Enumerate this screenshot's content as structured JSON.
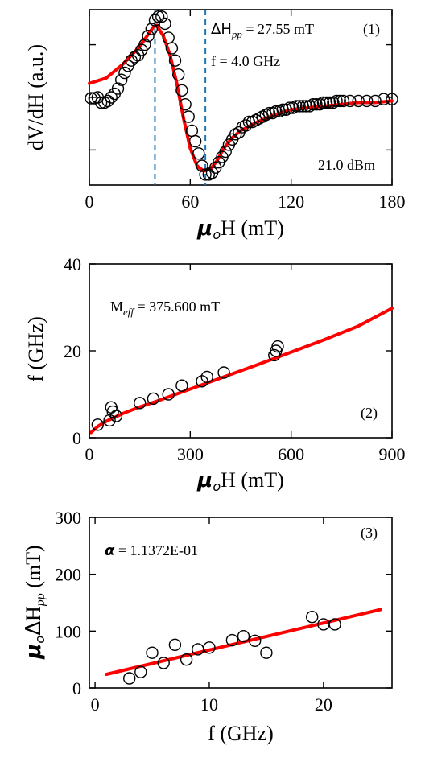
{
  "colors": {
    "fit": "#ff0000",
    "marker": "#000000",
    "guide": "#1f77b4"
  },
  "chart_data": [
    {
      "type": "scatter",
      "panel": "(1)",
      "xlabel": "μoH (mT)",
      "ylabel": "dV/dH (a.u.)",
      "xlim": [
        0,
        180
      ],
      "ylim": [
        0,
        1
      ],
      "xticks": [
        0,
        60,
        120,
        180
      ],
      "yticks": [
        0.2,
        0.5,
        0.8
      ],
      "ytick_labels_visible": false,
      "annotations": {
        "dhpp_symbol": "ΔH",
        "dhpp_sub": "pp",
        "dhpp_value": " = 27.55 mT",
        "freq": "f  =  4.0 GHz",
        "power": "21.0 dBm"
      },
      "vlines": [
        39,
        69
      ],
      "series": [
        {
          "style": "open-circle",
          "x": [
            1,
            3,
            5,
            7,
            9,
            11,
            13,
            15,
            17,
            19,
            21,
            23,
            25,
            27,
            29,
            31,
            33,
            35,
            37,
            39,
            41,
            43,
            45,
            47,
            49,
            51,
            53,
            55,
            57,
            59,
            61,
            63,
            65,
            67,
            69,
            71,
            73,
            75,
            77,
            79,
            81,
            83,
            85,
            87,
            89,
            91,
            93,
            95,
            97,
            99,
            101,
            103,
            105,
            107,
            109,
            111,
            113,
            115,
            117,
            119,
            121,
            123,
            125,
            127,
            129,
            131,
            133,
            135,
            137,
            139,
            141,
            143,
            145,
            147,
            149,
            151,
            155,
            160,
            165,
            170,
            175,
            180
          ],
          "y": [
            0.495,
            0.495,
            0.5,
            0.47,
            0.47,
            0.48,
            0.5,
            0.52,
            0.55,
            0.6,
            0.64,
            0.68,
            0.71,
            0.73,
            0.74,
            0.77,
            0.8,
            0.85,
            0.89,
            0.94,
            0.96,
            0.96,
            0.92,
            0.84,
            0.78,
            0.71,
            0.63,
            0.54,
            0.46,
            0.39,
            0.31,
            0.25,
            0.18,
            0.11,
            0.06,
            0.06,
            0.07,
            0.1,
            0.13,
            0.16,
            0.19,
            0.23,
            0.26,
            0.29,
            0.3,
            0.33,
            0.34,
            0.36,
            0.36,
            0.37,
            0.38,
            0.39,
            0.4,
            0.41,
            0.41,
            0.42,
            0.42,
            0.43,
            0.43,
            0.44,
            0.44,
            0.45,
            0.45,
            0.45,
            0.45,
            0.45,
            0.46,
            0.46,
            0.46,
            0.47,
            0.47,
            0.47,
            0.47,
            0.48,
            0.48,
            0.48,
            0.48,
            0.48,
            0.48,
            0.48,
            0.49,
            0.49
          ]
        },
        {
          "style": "fit-line",
          "x": [
            0,
            10,
            20,
            30,
            35,
            38,
            40,
            44,
            48,
            52,
            56,
            60,
            64,
            68,
            72,
            76,
            80,
            85,
            90,
            100,
            110,
            120,
            130,
            140,
            150,
            160,
            170,
            180
          ],
          "y": [
            0.58,
            0.61,
            0.69,
            0.79,
            0.86,
            0.9,
            0.91,
            0.85,
            0.74,
            0.58,
            0.38,
            0.21,
            0.11,
            0.08,
            0.09,
            0.14,
            0.21,
            0.27,
            0.31,
            0.36,
            0.4,
            0.43,
            0.44,
            0.45,
            0.46,
            0.47,
            0.47,
            0.48
          ]
        }
      ]
    },
    {
      "type": "scatter",
      "panel": "(2)",
      "xlabel": "μoH (mT)",
      "ylabel": "f  (GHz)",
      "xlim": [
        0,
        900
      ],
      "ylim": [
        0,
        40
      ],
      "xticks": [
        0,
        300,
        600,
        900
      ],
      "yticks": [
        0,
        20,
        40
      ],
      "annotations": {
        "meff_symbol": "M",
        "meff_sub": "eff",
        "meff_value": " = 375.600 mT"
      },
      "series": [
        {
          "style": "open-circle",
          "x": [
            25,
            60,
            65,
            70,
            80,
            150,
            190,
            235,
            275,
            335,
            350,
            400,
            550,
            555,
            560
          ],
          "y": [
            3,
            4,
            7,
            6,
            5,
            8,
            9,
            10,
            12,
            13,
            14,
            15,
            19,
            20,
            21
          ]
        },
        {
          "style": "fit-line",
          "x": [
            5,
            25,
            50,
            100,
            150,
            200,
            300,
            400,
            500,
            600,
            700,
            800,
            900
          ],
          "y": [
            1.2,
            2.6,
            3.8,
            5.6,
            7.1,
            8.4,
            11.2,
            14.0,
            16.8,
            19.7,
            22.6,
            25.7,
            29.8
          ]
        }
      ]
    },
    {
      "type": "scatter",
      "panel": "(3)",
      "xlabel": "f  (GHz)",
      "ylabel": "μoΔHpp (mT)",
      "xlim": [
        -0.5,
        26
      ],
      "ylim": [
        0,
        300
      ],
      "xticks": [
        0,
        10,
        20
      ],
      "yticks": [
        0,
        100,
        200,
        300
      ],
      "annotations": {
        "alpha_symbol": "α",
        "alpha_value": " = 1.1372E-01"
      },
      "series": [
        {
          "style": "open-circle",
          "x": [
            3,
            4,
            5,
            6,
            7,
            8,
            9,
            10,
            12,
            13,
            14,
            15,
            19,
            20,
            21
          ],
          "y": [
            17,
            28,
            62,
            44,
            76,
            50,
            68,
            71,
            84,
            91,
            83,
            62,
            125,
            112,
            112
          ]
        },
        {
          "style": "fit-line",
          "x": [
            1,
            25
          ],
          "y": [
            24,
            138
          ]
        }
      ]
    }
  ]
}
